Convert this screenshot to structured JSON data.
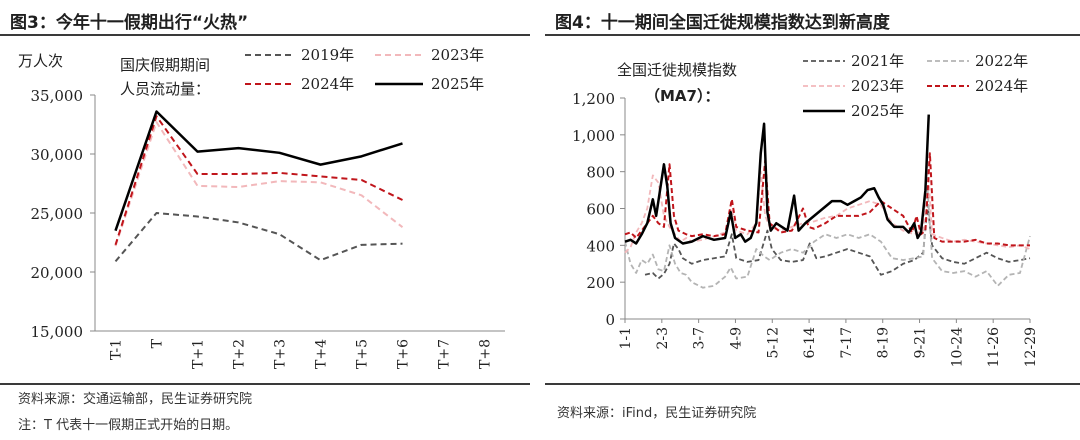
{
  "left": {
    "figure_title": "图3：今年十一假期出行“火热”",
    "source": "资料来源：交通运输部，民生证券研究院",
    "note": "注：T 代表十一假期正式开始的日期。"
  },
  "right": {
    "figure_title": "图4：十一期间全国迁徙规模指数达到新高度",
    "source": "资料来源：iFind，民生证券研究院"
  },
  "chart_data": [
    {
      "type": "line",
      "unit_label": "万人次",
      "inner_title": [
        "国庆假期期间",
        "人员流动量："
      ],
      "categories": [
        "T-1",
        "T",
        "T+1",
        "T+2",
        "T+3",
        "T+4",
        "T+5",
        "T+6",
        "T+7",
        "T+8"
      ],
      "ylim": [
        15000,
        35000
      ],
      "yticks": [
        15000,
        20000,
        25000,
        30000,
        35000
      ],
      "ytick_labels": [
        "15,000",
        "20,000",
        "25,000",
        "30,000",
        "35,000"
      ],
      "legend_placement": "top",
      "series": [
        {
          "name": "2019年",
          "color": "#555555",
          "dash": "6,4",
          "width": 2,
          "values": [
            20900,
            25000,
            24700,
            24200,
            23200,
            21000,
            22300,
            22400,
            null,
            null
          ]
        },
        {
          "name": "2023年",
          "color": "#f2b8bb",
          "dash": "6,4",
          "width": 2,
          "values": [
            22200,
            32700,
            27300,
            27200,
            27700,
            27600,
            26500,
            23800,
            null,
            null
          ]
        },
        {
          "name": "2024年",
          "color": "#c0151b",
          "dash": "6,4",
          "width": 2,
          "values": [
            22300,
            33200,
            28300,
            28300,
            28400,
            28100,
            27800,
            26100,
            null,
            null
          ]
        },
        {
          "name": "2025年",
          "color": "#000000",
          "dash": "",
          "width": 2.5,
          "values": [
            23500,
            33600,
            30200,
            30500,
            30100,
            29100,
            29800,
            30900,
            null,
            null
          ]
        }
      ]
    },
    {
      "type": "line",
      "inner_title": [
        "全国迁徙规模指数",
        "（MA7）："
      ],
      "x_tick_labels": [
        "1-1",
        "2-3",
        "3-7",
        "4-9",
        "5-12",
        "6-14",
        "7-17",
        "8-19",
        "9-21",
        "10-24",
        "11-26",
        "12-29"
      ],
      "ylim": [
        0,
        1200
      ],
      "yticks": [
        0,
        200,
        400,
        600,
        800,
        1000,
        1200
      ],
      "ytick_labels": [
        "0",
        "200",
        "400",
        "600",
        "800",
        "1,000",
        "1,200"
      ],
      "legend_placement": "top",
      "x_days": 364,
      "series": [
        {
          "name": "2021年",
          "color": "#555555",
          "dash": "5,3",
          "width": 1.8,
          "points": [
            [
              18,
              240
            ],
            [
              25,
              250
            ],
            [
              30,
              220
            ],
            [
              35,
              245
            ],
            [
              40,
              300
            ],
            [
              44,
              410
            ],
            [
              48,
              380
            ],
            [
              52,
              330
            ],
            [
              60,
              300
            ],
            [
              70,
              320
            ],
            [
              80,
              330
            ],
            [
              90,
              340
            ],
            [
              96,
              460
            ],
            [
              100,
              330
            ],
            [
              110,
              310
            ],
            [
              120,
              320
            ],
            [
              128,
              480
            ],
            [
              132,
              380
            ],
            [
              140,
              320
            ],
            [
              150,
              310
            ],
            [
              160,
              320
            ],
            [
              166,
              410
            ],
            [
              172,
              330
            ],
            [
              180,
              340
            ],
            [
              190,
              360
            ],
            [
              200,
              380
            ],
            [
              210,
              360
            ],
            [
              220,
              340
            ],
            [
              230,
              240
            ],
            [
              240,
              260
            ],
            [
              250,
              300
            ],
            [
              260,
              320
            ],
            [
              268,
              360
            ],
            [
              272,
              620
            ],
            [
              276,
              400
            ],
            [
              285,
              330
            ],
            [
              295,
              310
            ],
            [
              305,
              300
            ],
            [
              315,
              330
            ],
            [
              325,
              360
            ],
            [
              335,
              330
            ],
            [
              345,
              310
            ],
            [
              355,
              320
            ],
            [
              364,
              330
            ]
          ]
        },
        {
          "name": "2022年",
          "color": "#b4b4b4",
          "dash": "5,3",
          "width": 1.8,
          "points": [
            [
              0,
              420
            ],
            [
              5,
              300
            ],
            [
              10,
              250
            ],
            [
              15,
              320
            ],
            [
              20,
              300
            ],
            [
              25,
              350
            ],
            [
              30,
              270
            ],
            [
              35,
              260
            ],
            [
              40,
              400
            ],
            [
              45,
              300
            ],
            [
              50,
              250
            ],
            [
              55,
              240
            ],
            [
              60,
              200
            ],
            [
              70,
              170
            ],
            [
              80,
              180
            ],
            [
              90,
              230
            ],
            [
              95,
              280
            ],
            [
              100,
              220
            ],
            [
              110,
              230
            ],
            [
              118,
              380
            ],
            [
              125,
              340
            ],
            [
              130,
              320
            ],
            [
              140,
              360
            ],
            [
              150,
              380
            ],
            [
              160,
              360
            ],
            [
              170,
              420
            ],
            [
              180,
              460
            ],
            [
              190,
              440
            ],
            [
              200,
              460
            ],
            [
              210,
              440
            ],
            [
              220,
              460
            ],
            [
              230,
              420
            ],
            [
              240,
              330
            ],
            [
              250,
              320
            ],
            [
              260,
              330
            ],
            [
              268,
              340
            ],
            [
              272,
              700
            ],
            [
              276,
              330
            ],
            [
              285,
              260
            ],
            [
              295,
              250
            ],
            [
              305,
              260
            ],
            [
              315,
              230
            ],
            [
              325,
              260
            ],
            [
              335,
              180
            ],
            [
              345,
              240
            ],
            [
              355,
              250
            ],
            [
              364,
              450
            ]
          ]
        },
        {
          "name": "2023年",
          "color": "#f2b8bb",
          "dash": "5,3",
          "width": 1.8,
          "points": [
            [
              0,
              360
            ],
            [
              5,
              390
            ],
            [
              10,
              470
            ],
            [
              15,
              520
            ],
            [
              20,
              600
            ],
            [
              25,
              780
            ],
            [
              30,
              740
            ],
            [
              35,
              560
            ],
            [
              40,
              500
            ],
            [
              45,
              460
            ],
            [
              50,
              420
            ],
            [
              55,
              440
            ],
            [
              60,
              420
            ],
            [
              70,
              430
            ],
            [
              80,
              450
            ],
            [
              90,
              470
            ],
            [
              96,
              600
            ],
            [
              100,
              480
            ],
            [
              110,
              460
            ],
            [
              118,
              520
            ],
            [
              122,
              800
            ],
            [
              126,
              560
            ],
            [
              130,
              500
            ],
            [
              140,
              480
            ],
            [
              150,
              500
            ],
            [
              160,
              520
            ],
            [
              170,
              530
            ],
            [
              180,
              550
            ],
            [
              190,
              560
            ],
            [
              200,
              600
            ],
            [
              210,
              620
            ],
            [
              220,
              640
            ],
            [
              230,
              620
            ],
            [
              240,
              520
            ],
            [
              250,
              480
            ],
            [
              260,
              460
            ],
            [
              268,
              480
            ],
            [
              272,
              860
            ],
            [
              276,
              460
            ],
            [
              285,
              440
            ],
            [
              295,
              420
            ],
            [
              305,
              430
            ],
            [
              315,
              420
            ],
            [
              325,
              410
            ],
            [
              335,
              400
            ],
            [
              345,
              390
            ],
            [
              355,
              400
            ],
            [
              364,
              380
            ]
          ]
        },
        {
          "name": "2024年",
          "color": "#c0151b",
          "dash": "5,3",
          "width": 2,
          "points": [
            [
              0,
              460
            ],
            [
              5,
              470
            ],
            [
              10,
              440
            ],
            [
              15,
              480
            ],
            [
              20,
              520
            ],
            [
              25,
              560
            ],
            [
              30,
              520
            ],
            [
              35,
              500
            ],
            [
              40,
              840
            ],
            [
              44,
              560
            ],
            [
              48,
              480
            ],
            [
              55,
              460
            ],
            [
              60,
              450
            ],
            [
              70,
              460
            ],
            [
              80,
              450
            ],
            [
              90,
              460
            ],
            [
              96,
              650
            ],
            [
              100,
              500
            ],
            [
              110,
              480
            ],
            [
              120,
              470
            ],
            [
              126,
              860
            ],
            [
              130,
              520
            ],
            [
              140,
              470
            ],
            [
              150,
              480
            ],
            [
              160,
              600
            ],
            [
              165,
              500
            ],
            [
              170,
              490
            ],
            [
              180,
              520
            ],
            [
              190,
              560
            ],
            [
              200,
              560
            ],
            [
              210,
              560
            ],
            [
              220,
              580
            ],
            [
              230,
              640
            ],
            [
              240,
              600
            ],
            [
              250,
              560
            ],
            [
              258,
              470
            ],
            [
              262,
              560
            ],
            [
              266,
              460
            ],
            [
              270,
              480
            ],
            [
              274,
              900
            ],
            [
              278,
              440
            ],
            [
              285,
              420
            ],
            [
              295,
              420
            ],
            [
              305,
              420
            ],
            [
              315,
              430
            ],
            [
              325,
              410
            ],
            [
              335,
              410
            ],
            [
              345,
              400
            ],
            [
              355,
              400
            ],
            [
              364,
              400
            ]
          ]
        },
        {
          "name": "2025年",
          "color": "#000000",
          "dash": "",
          "width": 2.5,
          "points": [
            [
              0,
              420
            ],
            [
              5,
              430
            ],
            [
              10,
              410
            ],
            [
              15,
              460
            ],
            [
              20,
              520
            ],
            [
              25,
              650
            ],
            [
              28,
              560
            ],
            [
              31,
              680
            ],
            [
              35,
              840
            ],
            [
              38,
              720
            ],
            [
              41,
              520
            ],
            [
              45,
              440
            ],
            [
              52,
              410
            ],
            [
              60,
              420
            ],
            [
              70,
              450
            ],
            [
              80,
              430
            ],
            [
              90,
              440
            ],
            [
              95,
              580
            ],
            [
              99,
              440
            ],
            [
              104,
              460
            ],
            [
              108,
              420
            ],
            [
              113,
              440
            ],
            [
              118,
              520
            ],
            [
              122,
              900
            ],
            [
              125,
              1060
            ],
            [
              128,
              580
            ],
            [
              131,
              480
            ],
            [
              136,
              520
            ],
            [
              141,
              500
            ],
            [
              146,
              480
            ],
            [
              152,
              670
            ],
            [
              156,
              480
            ],
            [
              162,
              520
            ],
            [
              170,
              560
            ],
            [
              178,
              600
            ],
            [
              186,
              640
            ],
            [
              194,
              640
            ],
            [
              200,
              620
            ],
            [
              206,
              640
            ],
            [
              212,
              660
            ],
            [
              218,
              700
            ],
            [
              224,
              710
            ],
            [
              228,
              660
            ],
            [
              232,
              620
            ],
            [
              236,
              540
            ],
            [
              242,
              500
            ],
            [
              250,
              500
            ],
            [
              255,
              470
            ],
            [
              260,
              520
            ],
            [
              263,
              440
            ],
            [
              266,
              470
            ],
            [
              270,
              700
            ],
            [
              273,
              1110
            ]
          ]
        }
      ]
    }
  ]
}
